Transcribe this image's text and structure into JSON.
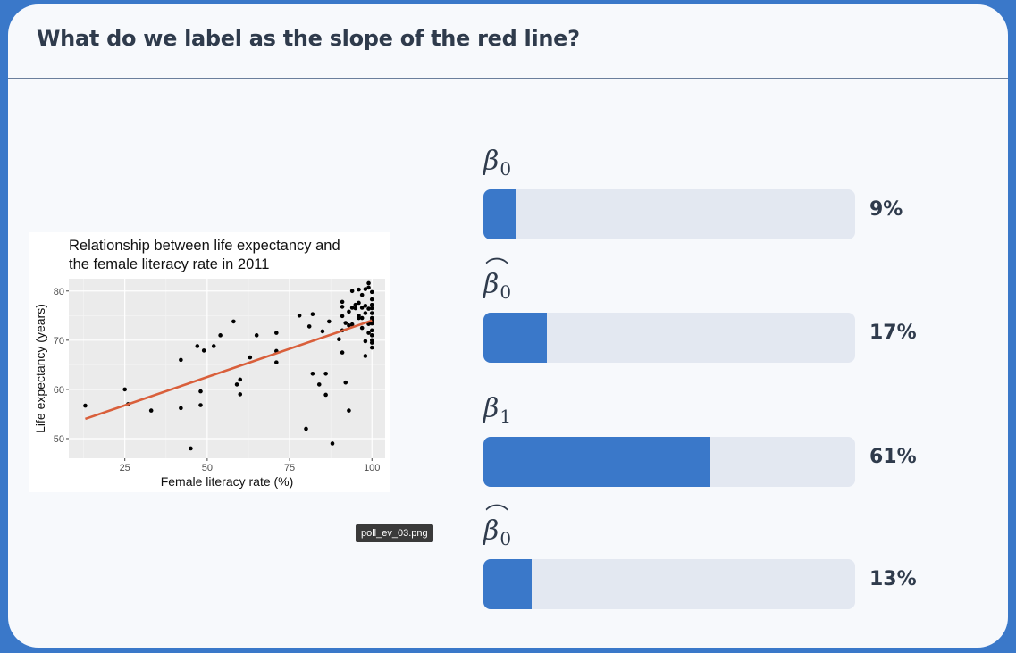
{
  "question": "What do we label as the slope of the red line?",
  "figure_filename": "poll_ev_03.png",
  "options": [
    {
      "symbol": "β",
      "subscript": "0",
      "hat": false,
      "percent_label": "9%",
      "percent": 9
    },
    {
      "symbol": "β",
      "subscript": "0",
      "hat": true,
      "percent_label": "17%",
      "percent": 17
    },
    {
      "symbol": "β",
      "subscript": "1",
      "hat": false,
      "percent_label": "61%",
      "percent": 61
    },
    {
      "symbol": "β",
      "subscript": "0",
      "hat": true,
      "percent_label": "13%",
      "percent": 13
    }
  ],
  "colors": {
    "accent": "#3a78c9",
    "track": "#e3e8f1",
    "fit_line": "#d95f3b"
  },
  "chart_data": {
    "type": "scatter",
    "title": "Relationship between life expectancy and\n the female literacy rate in 2011",
    "title_lines": [
      "Relationship between life expectancy and",
      " the female literacy rate in 2011"
    ],
    "xlabel": "Female literacy rate (%)",
    "ylabel": "Life expectancy (years)",
    "xlim": [
      8,
      104
    ],
    "ylim": [
      46,
      82.5
    ],
    "xticks": [
      25,
      50,
      75,
      100
    ],
    "yticks": [
      50,
      60,
      70,
      80
    ],
    "grid": true,
    "fit_line": {
      "x": [
        13,
        100
      ],
      "y": [
        54,
        74
      ]
    },
    "points": [
      [
        13,
        56.7
      ],
      [
        25,
        60
      ],
      [
        26,
        57
      ],
      [
        33,
        55.7
      ],
      [
        42,
        66
      ],
      [
        42,
        56.2
      ],
      [
        45,
        48
      ],
      [
        47,
        68.8
      ],
      [
        48,
        59.6
      ],
      [
        48,
        56.8
      ],
      [
        49,
        67.9
      ],
      [
        52,
        68.8
      ],
      [
        54,
        71
      ],
      [
        58,
        73.8
      ],
      [
        59,
        61
      ],
      [
        60,
        62
      ],
      [
        60,
        59
      ],
      [
        63,
        66.5
      ],
      [
        65,
        71
      ],
      [
        71,
        71.5
      ],
      [
        71,
        67.8
      ],
      [
        71,
        65.5
      ],
      [
        78,
        75
      ],
      [
        81,
        72.8
      ],
      [
        80,
        52
      ],
      [
        82,
        75.3
      ],
      [
        82,
        63.2
      ],
      [
        84,
        61
      ],
      [
        85,
        71.8
      ],
      [
        86,
        63.2
      ],
      [
        86,
        58.9
      ],
      [
        87,
        73.8
      ],
      [
        88,
        49
      ],
      [
        90,
        70.2
      ],
      [
        91,
        67.5
      ],
      [
        91,
        72
      ],
      [
        91,
        74.9
      ],
      [
        91,
        76.8
      ],
      [
        91,
        77.8
      ],
      [
        92,
        61.4
      ],
      [
        92,
        73.5
      ],
      [
        93,
        75.8
      ],
      [
        93,
        73
      ],
      [
        93,
        55.7
      ],
      [
        94,
        76.6
      ],
      [
        94,
        80
      ],
      [
        95,
        77.2
      ],
      [
        96,
        75
      ],
      [
        96,
        74.5
      ],
      [
        96,
        80.3
      ],
      [
        97,
        76.6
      ],
      [
        97,
        79.2
      ],
      [
        97,
        74.5
      ],
      [
        98,
        77
      ],
      [
        98,
        80.4
      ],
      [
        98,
        75.5
      ],
      [
        98,
        66.8
      ],
      [
        99,
        71.5
      ],
      [
        99,
        73.3
      ],
      [
        99,
        76.4
      ],
      [
        99,
        81.6
      ],
      [
        99,
        80.7
      ],
      [
        100,
        78.3
      ],
      [
        100,
        77.2
      ],
      [
        100,
        75.5
      ],
      [
        100,
        74.5
      ],
      [
        100,
        73.4
      ],
      [
        100,
        72
      ],
      [
        100,
        71
      ],
      [
        100,
        70
      ],
      [
        100,
        69.5
      ],
      [
        100,
        68.5
      ],
      [
        100,
        79.8
      ],
      [
        100,
        76.5
      ],
      [
        100,
        74
      ],
      [
        98,
        69.8
      ],
      [
        97,
        72.5
      ],
      [
        95,
        76.5
      ],
      [
        96,
        77.6
      ],
      [
        94,
        73.2
      ]
    ]
  }
}
